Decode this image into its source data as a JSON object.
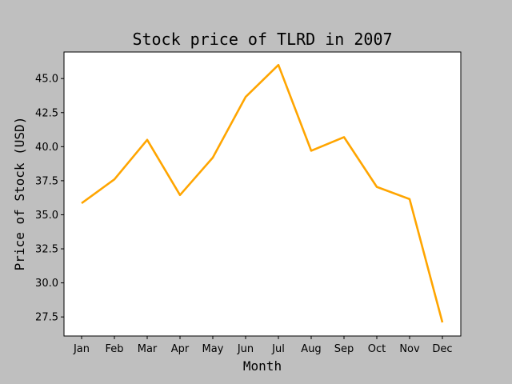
{
  "chart_data": {
    "type": "line",
    "title": "Stock price of TLRD in 2007",
    "xlabel": "Month",
    "ylabel": "Price of Stock (USD)",
    "categories": [
      "Jan",
      "Feb",
      "Mar",
      "Apr",
      "May",
      "Jun",
      "Jul",
      "Aug",
      "Sep",
      "Oct",
      "Nov",
      "Dec"
    ],
    "series": [
      {
        "values": [
          35.85,
          37.6,
          40.5,
          36.45,
          39.2,
          43.65,
          46.0,
          39.7,
          40.7,
          37.05,
          36.15,
          27.1
        ],
        "color": "#ffa500"
      }
    ],
    "ylim": [
      26.1,
      46.95
    ],
    "yticks": [
      "27.5",
      "30.0",
      "32.5",
      "35.0",
      "37.5",
      "40.0",
      "42.5",
      "45.0"
    ],
    "ytick_values": [
      27.5,
      30.0,
      32.5,
      35.0,
      37.5,
      40.0,
      42.5,
      45.0
    ],
    "grid": false,
    "legend": "none"
  },
  "colors": {
    "figure_background": "#bfbfbf",
    "plot_background": "#ffffff",
    "line": "#ffa500"
  }
}
